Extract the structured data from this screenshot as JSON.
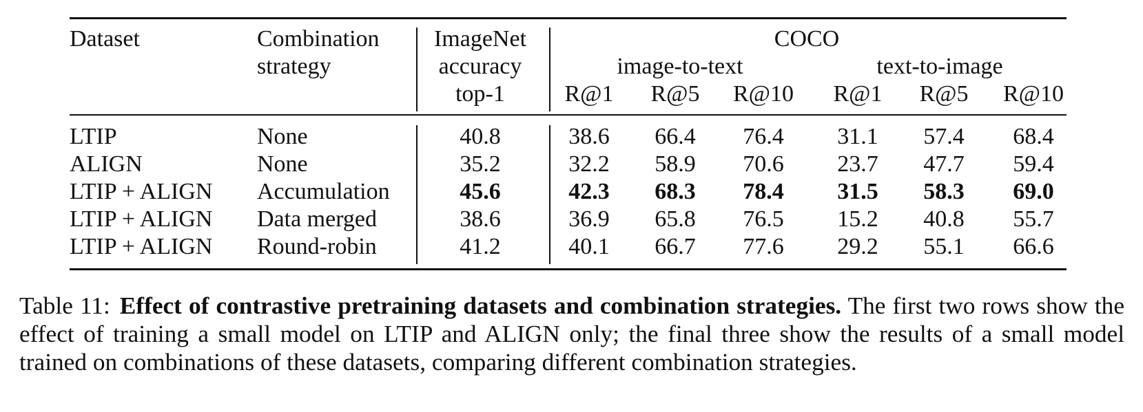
{
  "header": {
    "dataset": "Dataset",
    "combination_1": "Combination",
    "combination_2": "strategy",
    "imagenet_1": "ImageNet",
    "imagenet_2": "accuracy",
    "imagenet_3": "top-1",
    "coco": "COCO",
    "image_to_text": "image-to-text",
    "text_to_image": "text-to-image",
    "recall": [
      "R@1",
      "R@5",
      "R@10",
      "R@1",
      "R@5",
      "R@10"
    ]
  },
  "rows": [
    {
      "dataset": "LTIP",
      "strategy": "None",
      "imagenet": "40.8",
      "coco": [
        "38.6",
        "66.4",
        "76.4",
        "31.1",
        "57.4",
        "68.4"
      ]
    },
    {
      "dataset": "ALIGN",
      "strategy": "None",
      "imagenet": "35.2",
      "coco": [
        "32.2",
        "58.9",
        "70.6",
        "23.7",
        "47.7",
        "59.4"
      ]
    },
    {
      "dataset": "LTIP + ALIGN",
      "strategy": "Accumulation",
      "imagenet": "45.6",
      "coco": [
        "42.3",
        "68.3",
        "78.4",
        "31.5",
        "58.3",
        "69.0"
      ]
    },
    {
      "dataset": "LTIP + ALIGN",
      "strategy": "Data merged",
      "imagenet": "38.6",
      "coco": [
        "36.9",
        "65.8",
        "76.5",
        "15.2",
        "40.8",
        "55.7"
      ]
    },
    {
      "dataset": "LTIP + ALIGN",
      "strategy": "Round-robin",
      "imagenet": "41.2",
      "coco": [
        "40.1",
        "66.7",
        "77.6",
        "29.2",
        "55.1",
        "66.6"
      ]
    }
  ],
  "caption": {
    "label": "Table 11:",
    "bold": "Effect of contrastive pretraining datasets and combination strategies.",
    "text": "The first two rows show the effect of training a small model on LTIP and ALIGN only; the final three show the results of a small model trained on combinations of these datasets, comparing different combination strategies."
  }
}
